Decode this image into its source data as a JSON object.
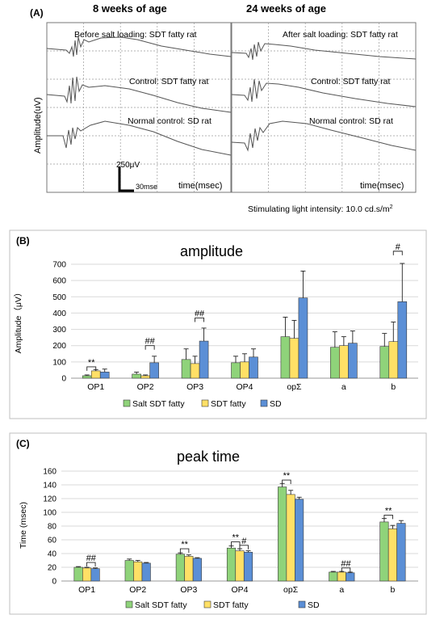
{
  "panel_a": {
    "label": "(A)",
    "header_left": "8 weeks of age",
    "header_right": "24 weeks of age",
    "ylabel": "Amplitude(uV)",
    "left_traces": [
      "Before salt loading: SDT fatty rat",
      "Control: SDT fatty rat",
      "Normal control: SD rat"
    ],
    "right_traces": [
      "After salt loading: SDT fatty rat",
      "Control: SDT fatty rat",
      "Normal control: SD rat"
    ],
    "scale_amp": "250μV",
    "scale_time": "30mse",
    "time_label_left": "time(msec)",
    "time_label_right": "time(msec)",
    "stim_text": "Stimulating light intensity: 10.0 cd.s/m",
    "stim_sup": "2"
  },
  "colors": {
    "salt_sdt_fatty": "#8fd37a",
    "sdt_fatty": "#ffe066",
    "sd": "#5b8fd6",
    "bar_stroke": "#3a3a3a",
    "grid": "#d9d9d9",
    "trace": "#555555"
  },
  "chart_data": [
    {
      "panel_label": "(B)",
      "type": "bar",
      "title": "amplitude",
      "ylabel": "Amplitude（μV）",
      "xlabel": "",
      "ylim": [
        0,
        700
      ],
      "yticks": [
        0,
        100,
        200,
        300,
        400,
        500,
        600,
        700
      ],
      "grid": true,
      "legend": "bottom",
      "categories": [
        "OP1",
        "OP2",
        "OP3",
        "OP4",
        "opΣ",
        "a",
        "b"
      ],
      "series": [
        {
          "name": "Salt SDT fatty",
          "values": [
            15,
            25,
            115,
            95,
            255,
            190,
            195
          ],
          "errors": [
            5,
            12,
            65,
            40,
            120,
            95,
            80
          ]
        },
        {
          "name": "SDT fatty",
          "values": [
            45,
            15,
            90,
            100,
            245,
            200,
            225
          ],
          "errors": [
            8,
            5,
            45,
            50,
            110,
            55,
            120
          ]
        },
        {
          "name": "SD",
          "values": [
            38,
            95,
            228,
            130,
            493,
            215,
            470
          ],
          "errors": [
            18,
            40,
            80,
            50,
            165,
            75,
            235
          ]
        }
      ],
      "annotations": [
        {
          "text": "**",
          "category": 0,
          "from": 0,
          "to": 1,
          "y": 70
        },
        {
          "text": "##",
          "category": 1,
          "from": 1,
          "to": 2,
          "y": 200
        },
        {
          "text": "##",
          "category": 2,
          "from": 1,
          "to": 2,
          "y": 370
        },
        {
          "text": "#",
          "category": 6,
          "from": 1,
          "to": 2,
          "y": 780
        }
      ]
    },
    {
      "panel_label": "(C)",
      "type": "bar",
      "title": "peak time",
      "ylabel": "Time (msec)",
      "xlabel": "",
      "ylim": [
        0,
        160
      ],
      "yticks": [
        0,
        20,
        40,
        60,
        80,
        100,
        120,
        140,
        160
      ],
      "grid": true,
      "legend": "bottom",
      "categories": [
        "OP1",
        "OP2",
        "OP3",
        "OP4",
        "opΣ",
        "a",
        "b"
      ],
      "series": [
        {
          "name": "Salt SDT fatty",
          "values": [
            20,
            30,
            39,
            48,
            137,
            13,
            86
          ],
          "errors": [
            1,
            2,
            2,
            3,
            5,
            1,
            5
          ]
        },
        {
          "name": "SDT fatty",
          "values": [
            19,
            28,
            36,
            44,
            126,
            13,
            76
          ],
          "errors": [
            1,
            2,
            2,
            3,
            6,
            1,
            5
          ]
        },
        {
          "name": "SD",
          "values": [
            18,
            26,
            33,
            42,
            119,
            12,
            84
          ],
          "errors": [
            1,
            1,
            1,
            2,
            3,
            1,
            4
          ]
        }
      ],
      "annotations": [
        {
          "text": "##",
          "category": 0,
          "from": 1,
          "to": 2,
          "y": 27
        },
        {
          "text": "**",
          "category": 2,
          "from": 0,
          "to": 1,
          "y": 47
        },
        {
          "text": "**",
          "category": 3,
          "from": 0,
          "to": 1,
          "y": 57
        },
        {
          "text": "#",
          "category": 3,
          "from": 1,
          "to": 2,
          "y": 52
        },
        {
          "text": "**",
          "category": 4,
          "from": 0,
          "to": 1,
          "y": 147
        },
        {
          "text": "##",
          "category": 5,
          "from": 1,
          "to": 2,
          "y": 19
        },
        {
          "text": "**",
          "category": 6,
          "from": 0,
          "to": 1,
          "y": 96
        }
      ]
    }
  ]
}
